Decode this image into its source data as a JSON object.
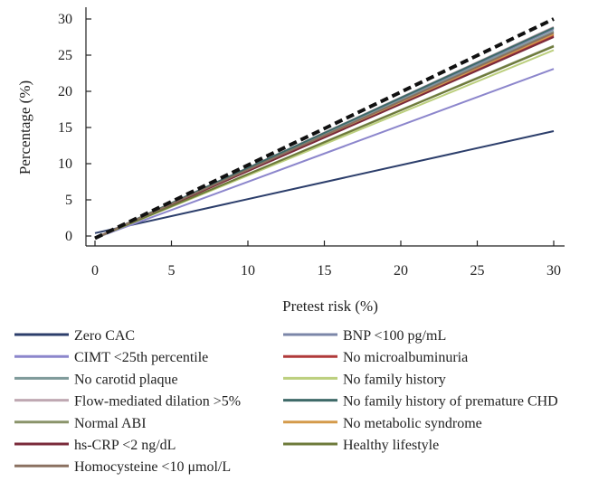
{
  "chart_data": {
    "type": "line",
    "title": "",
    "xlabel": "Pretest risk (%)",
    "ylabel": "Percentage (%)",
    "xlim": [
      0,
      30
    ],
    "ylim": [
      0,
      30
    ],
    "xticks": [
      0,
      5,
      10,
      15,
      20,
      25,
      30
    ],
    "yticks": [
      0,
      5,
      10,
      15,
      20,
      25,
      30
    ],
    "grid": false,
    "legend_position": "bottom",
    "reference": {
      "style": "dashed",
      "color": "#111111",
      "x": [
        0,
        30
      ],
      "y": [
        -0.3,
        30
      ]
    },
    "series": [
      {
        "name": "Zero CAC",
        "color": "#2c3e6b",
        "x": [
          0,
          30
        ],
        "y": [
          0.4,
          14.5
        ]
      },
      {
        "name": "BNP <100 pg/mL",
        "color": "#7b86a8",
        "x": [
          0,
          30
        ],
        "y": [
          -0.3,
          28.6
        ]
      },
      {
        "name": "CIMT <25th percentile",
        "color": "#8c86cc",
        "x": [
          0,
          30
        ],
        "y": [
          -0.3,
          23.1
        ]
      },
      {
        "name": "No microalbuminuria",
        "color": "#b03a3a",
        "x": [
          0,
          30
        ],
        "y": [
          -0.3,
          27.7
        ]
      },
      {
        "name": "No carotid plaque",
        "color": "#7f9a9a",
        "x": [
          0,
          30
        ],
        "y": [
          -0.3,
          28.3
        ]
      },
      {
        "name": "No family history",
        "color": "#bccf7e",
        "x": [
          0,
          30
        ],
        "y": [
          -0.3,
          25.7
        ]
      },
      {
        "name": "Flow-mediated dilation >5%",
        "color": "#bfa8b2",
        "x": [
          0,
          30
        ],
        "y": [
          -0.3,
          28.9
        ]
      },
      {
        "name": "No family history of premature CHD",
        "color": "#3e6a68",
        "x": [
          0,
          30
        ],
        "y": [
          -0.3,
          28.8
        ]
      },
      {
        "name": "Normal ABI",
        "color": "#8a946a",
        "x": [
          0,
          30
        ],
        "y": [
          -0.3,
          26.3
        ]
      },
      {
        "name": "No metabolic syndrome",
        "color": "#d49a4a",
        "x": [
          0,
          30
        ],
        "y": [
          -0.3,
          27.9
        ]
      },
      {
        "name": "hs-CRP <2 ng/dL",
        "color": "#7a2a3a",
        "x": [
          0,
          30
        ],
        "y": [
          -0.3,
          27.5
        ]
      },
      {
        "name": "Healthy lifestyle",
        "color": "#6d7a3a",
        "x": [
          0,
          30
        ],
        "y": [
          -0.3,
          26.2
        ]
      },
      {
        "name": "Homocysteine <10 μmol/L",
        "color": "#8a7060",
        "x": [
          0,
          30
        ],
        "y": [
          -0.3,
          28.1
        ]
      }
    ]
  }
}
